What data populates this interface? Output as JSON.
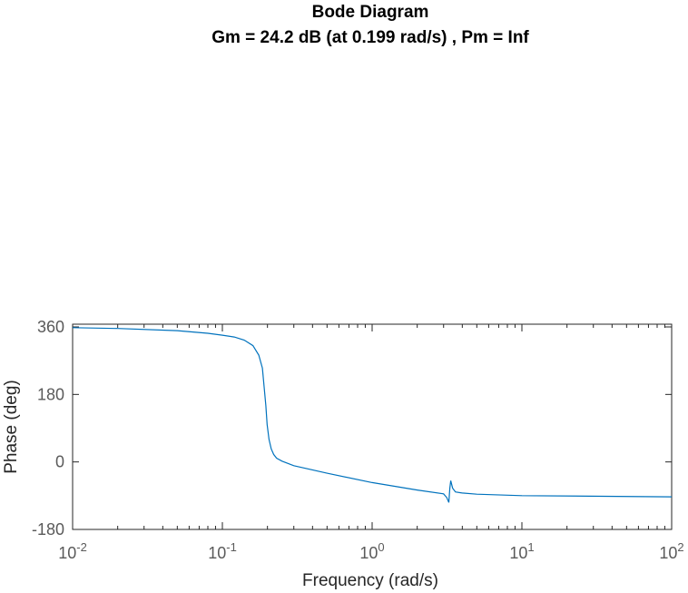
{
  "chart_data": {
    "type": "line",
    "title": "Bode Diagram",
    "subtitle": "Gm = 24.2 dB (at 0.199 rad/s) ,  Pm = Inf",
    "xlabel": "Frequency  (rad/s)",
    "ylabel": "Phase (deg)",
    "xscale": "log",
    "xlim": [
      0.01,
      100
    ],
    "ylim": [
      -180,
      360
    ],
    "x_ticks": [
      {
        "base": "10",
        "exp": "-2"
      },
      {
        "base": "10",
        "exp": "-1"
      },
      {
        "base": "10",
        "exp": "0"
      },
      {
        "base": "10",
        "exp": "1"
      },
      {
        "base": "10",
        "exp": "2"
      }
    ],
    "y_ticks": [
      "360",
      "180",
      "0",
      "-180"
    ],
    "grid": false,
    "line_color": "#0072bd",
    "series": [
      {
        "x": [
          0.01,
          0.02,
          0.05,
          0.08,
          0.1,
          0.12,
          0.14,
          0.16,
          0.175,
          0.185,
          0.19,
          0.195,
          0.199,
          0.205,
          0.212,
          0.22,
          0.23,
          0.25,
          0.3,
          0.5,
          1,
          2,
          3,
          3.15,
          3.25,
          3.3,
          3.35,
          3.45,
          3.6,
          4,
          5,
          10,
          100
        ],
        "y": [
          358,
          356,
          350,
          343,
          338,
          333,
          325,
          310,
          285,
          250,
          200,
          150,
          100,
          60,
          35,
          20,
          10,
          2,
          -10,
          -30,
          -55,
          -75,
          -85,
          -95,
          -108,
          -70,
          -50,
          -70,
          -80,
          -83,
          -86,
          -90,
          -93
        ]
      }
    ]
  }
}
